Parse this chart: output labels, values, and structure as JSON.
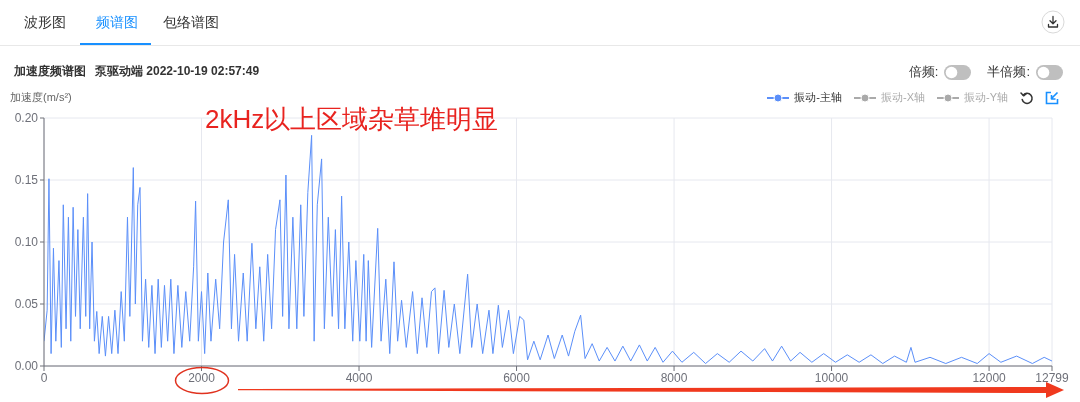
{
  "chart_data": {
    "type": "line",
    "title": "加速度频谱图",
    "subtitle": "泵驱动端 2022-10-19 02:57:49",
    "ylabel": "加速度(m/s²)",
    "annotations": [
      "波形图",
      "频谱图",
      "包络谱图",
      "倍频:",
      "半倍频:",
      "2kHz以上区域杂草堆明显"
    ],
    "x": [
      0,
      40,
      63,
      90,
      120,
      150,
      190,
      220,
      245,
      280,
      310,
      340,
      370,
      400,
      430,
      460,
      500,
      530,
      554,
      580,
      610,
      640,
      670,
      700,
      740,
      780,
      820,
      860,
      900,
      940,
      980,
      1020,
      1060,
      1090,
      1134,
      1160,
      1190,
      1219,
      1250,
      1290,
      1330,
      1370,
      1410,
      1450,
      1490,
      1530,
      1570,
      1610,
      1650,
      1700,
      1750,
      1800,
      1850,
      1900,
      1925,
      1960,
      2000,
      2040,
      2080,
      2120,
      2180,
      2230,
      2280,
      2340,
      2380,
      2420,
      2470,
      2530,
      2580,
      2640,
      2690,
      2740,
      2790,
      2840,
      2890,
      2940,
      2996,
      3030,
      3072,
      3110,
      3160,
      3210,
      3260,
      3300,
      3350,
      3398,
      3430,
      3470,
      3525,
      3560,
      3610,
      3660,
      3700,
      3740,
      3779,
      3820,
      3870,
      3920,
      3960,
      4010,
      4060,
      4090,
      4118,
      4160,
      4237,
      4280,
      4340,
      4390,
      4444,
      4490,
      4540,
      4600,
      4680,
      4740,
      4800,
      4860,
      4920,
      4964,
      5010,
      5080,
      5140,
      5210,
      5280,
      5379,
      5430,
      5500,
      5570,
      5650,
      5700,
      5769,
      5820,
      5900,
      5960,
      6040,
      6092,
      6140,
      6220,
      6300,
      6400,
      6480,
      6580,
      6660,
      6740,
      6814,
      6870,
      6960,
      7050,
      7150,
      7250,
      7350,
      7450,
      7560,
      7660,
      7760,
      7860,
      7980,
      8100,
      8250,
      8400,
      8550,
      8700,
      8850,
      9000,
      9150,
      9250,
      9366,
      9480,
      9600,
      9750,
      9900,
      10050,
      10200,
      10350,
      10500,
      10650,
      10800,
      10950,
      11008,
      11060,
      11250,
      11450,
      11650,
      11850,
      12000,
      12150,
      12350,
      12550,
      12700,
      12799
    ],
    "series": [
      {
        "name": "振动-主轴",
        "color": "#5b8ff9",
        "values": [
          0.02,
          0.045,
          0.151,
          0.01,
          0.095,
          0.02,
          0.085,
          0.015,
          0.13,
          0.03,
          0.12,
          0.02,
          0.128,
          0.04,
          0.11,
          0.03,
          0.12,
          0.04,
          0.139,
          0.03,
          0.1,
          0.02,
          0.044,
          0.01,
          0.04,
          0.008,
          0.04,
          0.01,
          0.045,
          0.01,
          0.06,
          0.02,
          0.12,
          0.04,
          0.16,
          0.05,
          0.13,
          0.144,
          0.02,
          0.07,
          0.015,
          0.065,
          0.01,
          0.07,
          0.015,
          0.065,
          0.02,
          0.07,
          0.01,
          0.065,
          0.015,
          0.06,
          0.02,
          0.08,
          0.133,
          0.02,
          0.06,
          0.01,
          0.075,
          0.02,
          0.07,
          0.03,
          0.1,
          0.134,
          0.03,
          0.09,
          0.02,
          0.075,
          0.02,
          0.099,
          0.03,
          0.08,
          0.02,
          0.09,
          0.03,
          0.11,
          0.134,
          0.04,
          0.154,
          0.03,
          0.12,
          0.03,
          0.13,
          0.04,
          0.14,
          0.186,
          0.02,
          0.13,
          0.167,
          0.03,
          0.12,
          0.04,
          0.11,
          0.03,
          0.137,
          0.03,
          0.1,
          0.02,
          0.085,
          0.02,
          0.09,
          0.02,
          0.085,
          0.015,
          0.111,
          0.02,
          0.07,
          0.01,
          0.084,
          0.02,
          0.053,
          0.015,
          0.06,
          0.01,
          0.055,
          0.015,
          0.06,
          0.063,
          0.01,
          0.061,
          0.015,
          0.05,
          0.01,
          0.074,
          0.015,
          0.05,
          0.01,
          0.045,
          0.01,
          0.049,
          0.015,
          0.045,
          0.01,
          0.04,
          0.037,
          0.005,
          0.02,
          0.005,
          0.025,
          0.006,
          0.025,
          0.008,
          0.028,
          0.041,
          0.006,
          0.018,
          0.004,
          0.015,
          0.004,
          0.016,
          0.004,
          0.017,
          0.004,
          0.015,
          0.003,
          0.012,
          0.003,
          0.011,
          0.002,
          0.01,
          0.003,
          0.012,
          0.004,
          0.014,
          0.004,
          0.016,
          0.004,
          0.011,
          0.003,
          0.01,
          0.003,
          0.009,
          0.003,
          0.009,
          0.002,
          0.008,
          0.003,
          0.015,
          0.003,
          0.007,
          0.002,
          0.007,
          0.002,
          0.01,
          0.003,
          0.008,
          0.002,
          0.007,
          0.004
        ]
      },
      {
        "name": "振动-X轴",
        "color": "#aaaaaa",
        "values": [
          null,
          null,
          null,
          null,
          null,
          null,
          null,
          null,
          null,
          null,
          null,
          null,
          null,
          null,
          null,
          null,
          null,
          null,
          null,
          null,
          null,
          null,
          null,
          null,
          null,
          null,
          null,
          null,
          null,
          null,
          null,
          null,
          null,
          null,
          null,
          null,
          null,
          null,
          null,
          null,
          null,
          null,
          null,
          null,
          null,
          null,
          null,
          null,
          null,
          null,
          null,
          null,
          null,
          null,
          null,
          null,
          null,
          null,
          null,
          null,
          null,
          null,
          null,
          null,
          null,
          null,
          null,
          null,
          null,
          null,
          null,
          null,
          null,
          null,
          null,
          null,
          null,
          null,
          null,
          null,
          null,
          null,
          null,
          null,
          null,
          null,
          null,
          null,
          null,
          null,
          null,
          null,
          null,
          null,
          null,
          null,
          null,
          null,
          null,
          null,
          null,
          null,
          null,
          null,
          null,
          null,
          null,
          null,
          null,
          null,
          null,
          null,
          null,
          null,
          null,
          null,
          null,
          null,
          null,
          null,
          null,
          null,
          null,
          null,
          null,
          null,
          null,
          null,
          null,
          null,
          null,
          null,
          null,
          null,
          null,
          null,
          null,
          null,
          null,
          null,
          null,
          null,
          null,
          null,
          null,
          null,
          null,
          null,
          null,
          null,
          null,
          null,
          null,
          null,
          null,
          null,
          null,
          null,
          null,
          null,
          null,
          null,
          null,
          null,
          null,
          null,
          null,
          null,
          null,
          null,
          null,
          null,
          null,
          null,
          null,
          null,
          null,
          null,
          null,
          null,
          null,
          null,
          null,
          null,
          null,
          null,
          null,
          null,
          null
        ]
      },
      {
        "name": "振动-Y轴",
        "color": "#aaaaaa",
        "values": [
          null,
          null,
          null,
          null,
          null,
          null,
          null,
          null,
          null,
          null,
          null,
          null,
          null,
          null,
          null,
          null,
          null,
          null,
          null,
          null,
          null,
          null,
          null,
          null,
          null,
          null,
          null,
          null,
          null,
          null,
          null,
          null,
          null,
          null,
          null,
          null,
          null,
          null,
          null,
          null,
          null,
          null,
          null,
          null,
          null,
          null,
          null,
          null,
          null,
          null,
          null,
          null,
          null,
          null,
          null,
          null,
          null,
          null,
          null,
          null,
          null,
          null,
          null,
          null,
          null,
          null,
          null,
          null,
          null,
          null,
          null,
          null,
          null,
          null,
          null,
          null,
          null,
          null,
          null,
          null,
          null,
          null,
          null,
          null,
          null,
          null,
          null,
          null,
          null,
          null,
          null,
          null,
          null,
          null,
          null,
          null,
          null,
          null,
          null,
          null,
          null,
          null,
          null,
          null,
          null,
          null,
          null,
          null,
          null,
          null,
          null,
          null,
          null,
          null,
          null,
          null,
          null,
          null,
          null,
          null,
          null,
          null,
          null,
          null,
          null,
          null,
          null,
          null,
          null,
          null,
          null,
          null,
          null,
          null,
          null,
          null,
          null,
          null,
          null,
          null,
          null,
          null,
          null,
          null,
          null,
          null,
          null,
          null,
          null,
          null,
          null,
          null,
          null,
          null,
          null,
          null,
          null,
          null,
          null,
          null,
          null,
          null,
          null,
          null,
          null,
          null,
          null,
          null,
          null,
          null,
          null,
          null,
          null,
          null,
          null,
          null,
          null,
          null,
          null,
          null,
          null,
          null,
          null,
          null,
          null,
          null,
          null,
          null,
          null
        ]
      }
    ],
    "xlim": [
      0,
      12799
    ],
    "xticks": [
      0,
      2000,
      4000,
      6000,
      8000,
      10000,
      12000,
      12799
    ],
    "ylim": [
      0,
      0.2
    ],
    "yticks": [
      {
        "value": 0,
        "label": "0.00"
      },
      0.05,
      {
        "value": 0.1,
        "label": "0.10"
      },
      0.15,
      {
        "value": 0.2,
        "label": "0.20"
      }
    ],
    "grid": true,
    "legend": "top right"
  }
}
